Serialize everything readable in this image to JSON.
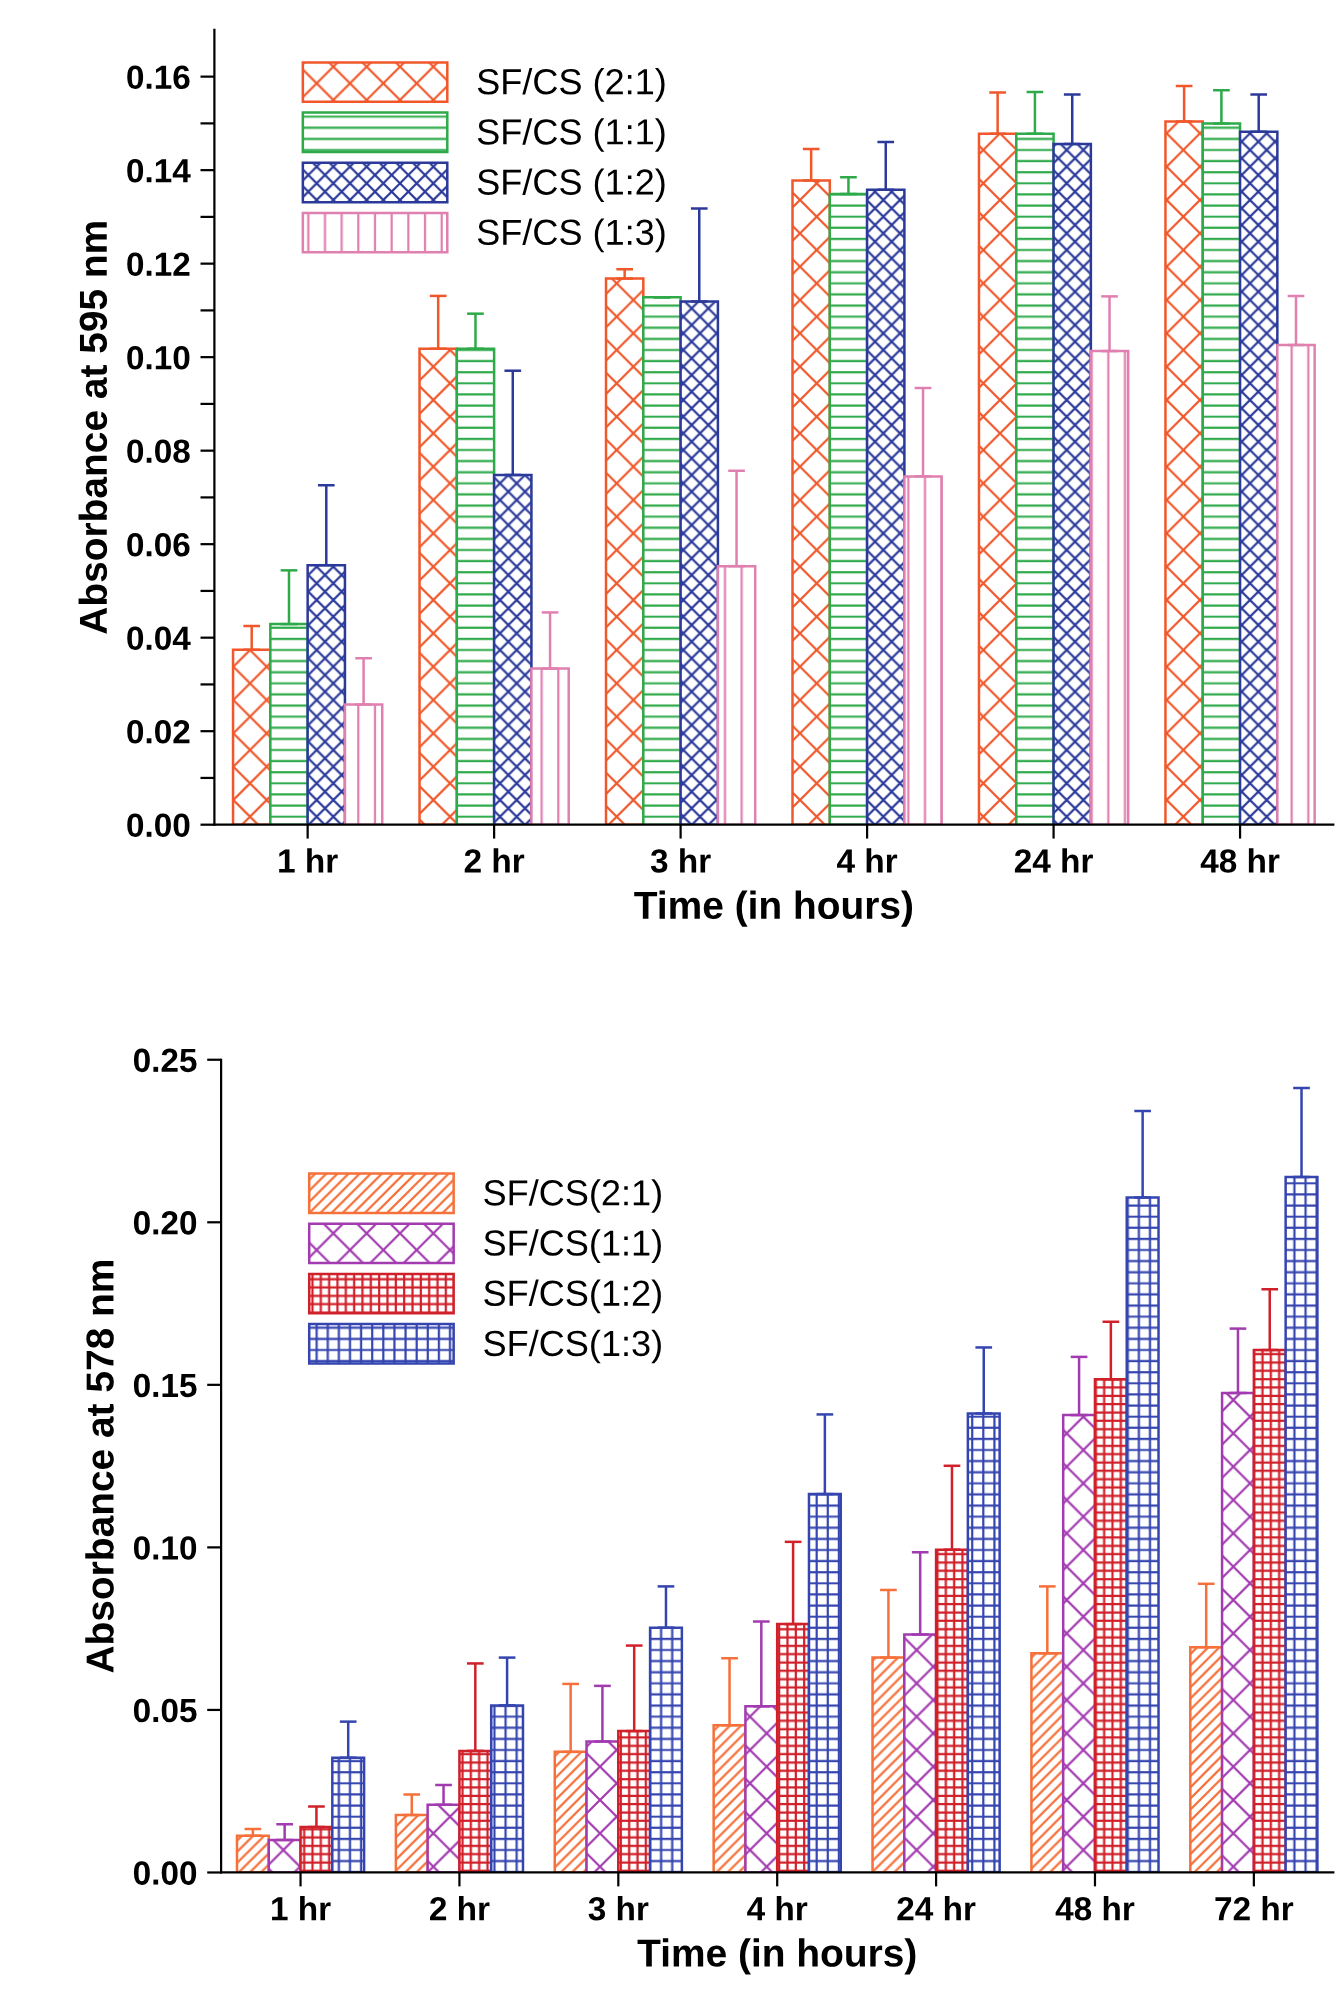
{
  "chart_data": [
    {
      "type": "bar",
      "xlabel": "Time (in hours)",
      "ylabel": "Absorbance at 595 nm",
      "categories": [
        "1 hr",
        "2 hr",
        "3 hr",
        "4 hr",
        "24 hr",
        "48 hr"
      ],
      "ylim": [
        0,
        0.17
      ],
      "yticks": [
        {
          "value": 0,
          "label": "0.00"
        },
        {
          "value": 0.01,
          "label": null
        },
        {
          "value": 0.02,
          "label": "0.02"
        },
        {
          "value": 0.03,
          "label": null
        },
        {
          "value": 0.04,
          "label": "0.04"
        },
        {
          "value": 0.05,
          "label": null
        },
        {
          "value": 0.06,
          "label": "0.06"
        },
        {
          "value": 0.07,
          "label": null
        },
        {
          "value": 0.08,
          "label": "0.08"
        },
        {
          "value": 0.09,
          "label": null
        },
        {
          "value": 0.1,
          "label": "0.10"
        },
        {
          "value": 0.11,
          "label": null
        },
        {
          "value": 0.12,
          "label": "0.12"
        },
        {
          "value": 0.13,
          "label": null
        },
        {
          "value": 0.14,
          "label": "0.14"
        },
        {
          "value": 0.15,
          "label": null
        },
        {
          "value": 0.16,
          "label": "0.16"
        }
      ],
      "legend": "top left",
      "grid": false,
      "series": [
        {
          "name": "SF/CS (2:1)",
          "color": "#f0572a",
          "values": [
            0.0374,
            0.1018,
            0.1168,
            0.1378,
            0.1478,
            0.1504
          ],
          "errors": [
            [
              0.0374,
              0.0425
            ],
            [
              0.1018,
              0.1131
            ],
            [
              0.1168,
              0.1188
            ],
            [
              0.1378,
              0.1445
            ],
            [
              0.1478,
              0.1566
            ],
            [
              0.1504,
              0.158
            ]
          ]
        },
        {
          "name": "SF/CS (1:1)",
          "color": "#2eaa4a",
          "values": [
            0.0429,
            0.1018,
            0.1128,
            0.1349,
            0.1478,
            0.15
          ],
          "errors": [
            [
              0.0429,
              0.0544
            ],
            [
              0.1018,
              0.1093
            ],
            null,
            [
              0.1349,
              0.1385
            ],
            [
              0.1478,
              0.1567
            ],
            [
              0.15,
              0.1571
            ]
          ]
        },
        {
          "name": "SF/CS (1:2)",
          "color": "#2b3a9a",
          "values": [
            0.0555,
            0.0748,
            0.1119,
            0.1358,
            0.1456,
            0.1482
          ],
          "errors": [
            [
              0.0555,
              0.0726
            ],
            [
              0.0748,
              0.0971
            ],
            [
              0.1119,
              0.1318
            ],
            [
              0.1358,
              0.146
            ],
            [
              0.1456,
              0.1562
            ],
            [
              0.1482,
              0.1562
            ]
          ]
        },
        {
          "name": "SF/CS (1:3)",
          "color": "#e080b0",
          "values": [
            0.0257,
            0.0334,
            0.0553,
            0.0745,
            0.1013,
            0.1026
          ],
          "errors": [
            [
              0.0257,
              0.0356
            ],
            [
              0.0334,
              0.0454
            ],
            [
              0.0553,
              0.0757
            ],
            [
              0.0745,
              0.0934
            ],
            [
              0.1013,
              0.113
            ],
            [
              0.1026,
              0.1131
            ]
          ]
        }
      ]
    },
    {
      "type": "bar",
      "xlabel": "Time (in hours)",
      "ylabel": "Absorbance at 578 nm",
      "categories": [
        "1 hr",
        "2 hr",
        "3 hr",
        "4 hr",
        "24 hr",
        "48 hr",
        "72 hr"
      ],
      "ylim": [
        0,
        0.25
      ],
      "yticks": [
        {
          "value": 0,
          "label": "0.00"
        },
        {
          "value": 0.05,
          "label": "0.05"
        },
        {
          "value": 0.1,
          "label": "0.10"
        },
        {
          "value": 0.15,
          "label": "0.15"
        },
        {
          "value": 0.2,
          "label": "0.20"
        },
        {
          "value": 0.25,
          "label": "0.25"
        }
      ],
      "legend": "top left",
      "grid": false,
      "series": [
        {
          "name": "SF/CS(2:1)",
          "color": "#f5703a",
          "values": [
            0.0113,
            0.0177,
            0.0371,
            0.0453,
            0.0661,
            0.0674,
            0.0693
          ],
          "errors": [
            [
              0.0113,
              0.0134
            ],
            [
              0.0177,
              0.024
            ],
            [
              0.0371,
              0.058
            ],
            [
              0.0453,
              0.0659
            ],
            [
              0.0661,
              0.0869
            ],
            [
              0.0674,
              0.088
            ],
            [
              0.0693,
              0.0888
            ]
          ]
        },
        {
          "name": "SF/CS(1:1)",
          "color": "#a23ab0",
          "values": [
            0.01,
            0.0208,
            0.0403,
            0.0511,
            0.0732,
            0.1407,
            0.1475
          ],
          "errors": [
            [
              0.01,
              0.0148
            ],
            [
              0.0208,
              0.0269
            ],
            [
              0.0403,
              0.0574
            ],
            [
              0.0511,
              0.0772
            ],
            [
              0.0732,
              0.0985
            ],
            [
              0.1407,
              0.1586
            ],
            [
              0.1475,
              0.1673
            ]
          ]
        },
        {
          "name": "SF/CS(1:2)",
          "color": "#d0202a",
          "values": [
            0.014,
            0.0374,
            0.0435,
            0.0764,
            0.0993,
            0.1517,
            0.1607
          ],
          "errors": [
            [
              0.014,
              0.0203
            ],
            [
              0.0374,
              0.0643
            ],
            [
              0.0435,
              0.0698
            ],
            [
              0.0764,
              0.1017
            ],
            [
              0.0993,
              0.1251
            ],
            [
              0.1517,
              0.1694
            ],
            [
              0.1607,
              0.1794
            ]
          ]
        },
        {
          "name": "SF/CS(1:3)",
          "color": "#3545b0",
          "values": [
            0.0353,
            0.0514,
            0.0753,
            0.1164,
            0.1412,
            0.2076,
            0.2139
          ],
          "errors": [
            [
              0.0353,
              0.0464
            ],
            [
              0.0514,
              0.0661
            ],
            [
              0.0753,
              0.088
            ],
            [
              0.1164,
              0.1409
            ],
            [
              0.1412,
              0.1615
            ],
            [
              0.2076,
              0.2342
            ],
            [
              0.2139,
              0.2413
            ]
          ]
        }
      ]
    }
  ]
}
